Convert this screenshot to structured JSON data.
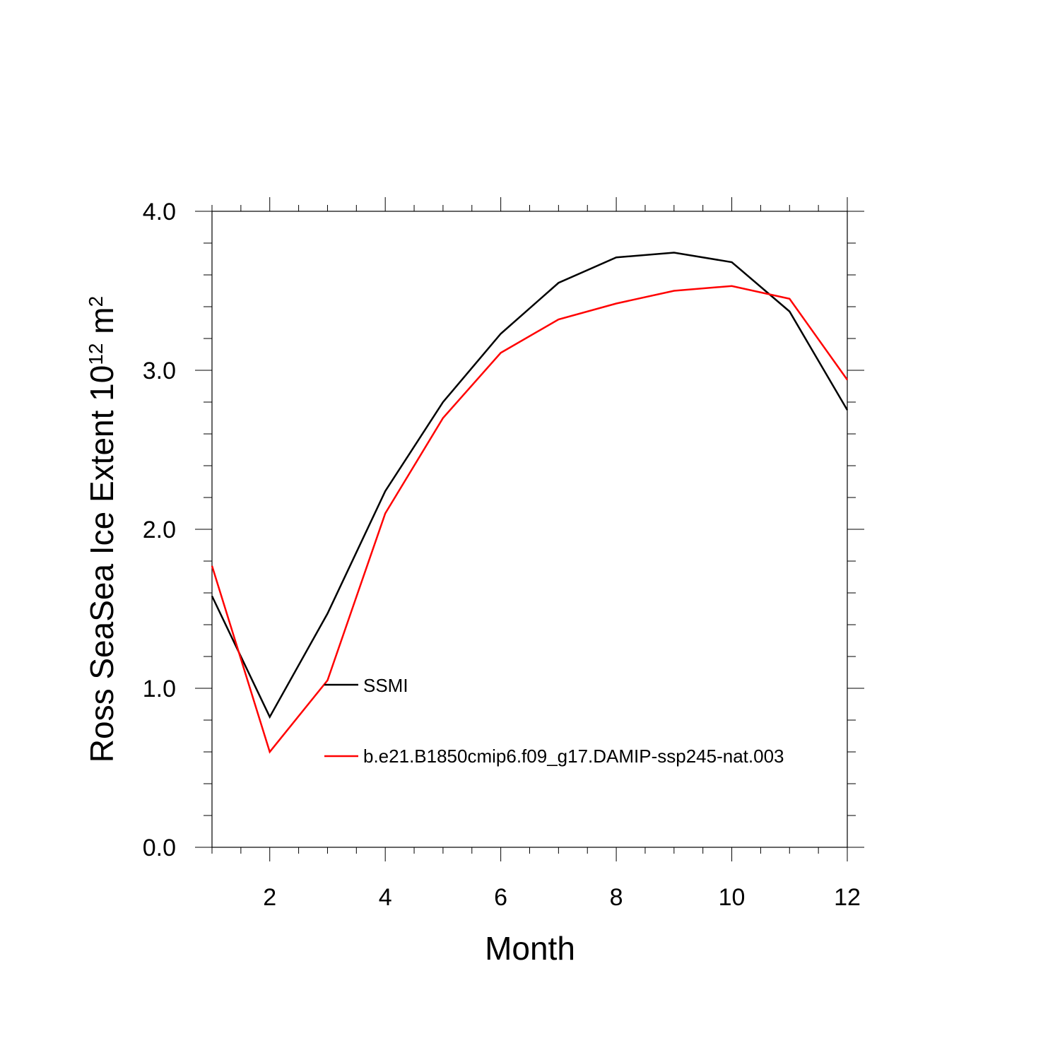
{
  "chart_data": {
    "type": "line",
    "xlabel": "Month",
    "ylabel": {
      "main": "Ross SeaSea Ice Extent 10",
      "exp1": "12",
      "unit": " m",
      "exp2": "2"
    },
    "xlim": [
      1,
      12
    ],
    "ylim": [
      0,
      4
    ],
    "x_ticks": [
      2,
      4,
      6,
      8,
      10,
      12
    ],
    "x_tick_labels": [
      "2",
      "4",
      "6",
      "8",
      "10",
      "12"
    ],
    "y_ticks": [
      0,
      1,
      2,
      3,
      4
    ],
    "y_tick_labels": [
      "0.0",
      "1.0",
      "2.0",
      "3.0",
      "4.0"
    ],
    "grid": false,
    "legend_position": "inside, lower-center",
    "x": [
      1,
      2,
      3,
      4,
      5,
      6,
      7,
      8,
      9,
      10,
      11,
      12
    ],
    "series": [
      {
        "name": "SSMI",
        "color": "#000000",
        "values": [
          1.58,
          0.82,
          1.47,
          2.24,
          2.8,
          3.23,
          3.55,
          3.71,
          3.74,
          3.68,
          3.37,
          2.75
        ]
      },
      {
        "name": "b.e21.B1850cmip6.f09_g17.DAMIP-ssp245-nat.003",
        "color": "#ff0000",
        "values": [
          1.77,
          0.6,
          1.05,
          2.1,
          2.7,
          3.11,
          3.32,
          3.42,
          3.5,
          3.53,
          3.45,
          2.94
        ]
      }
    ]
  }
}
